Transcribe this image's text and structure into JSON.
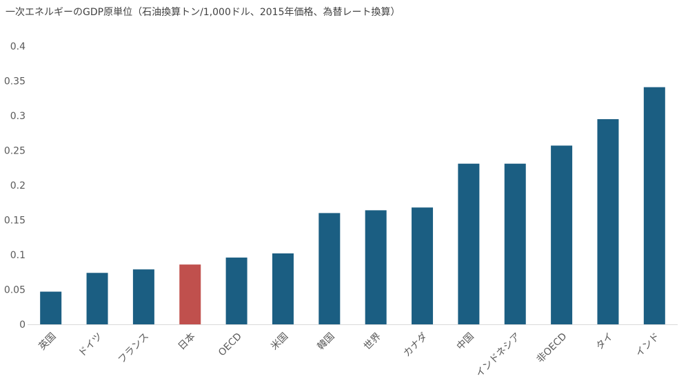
{
  "chart_data": {
    "type": "bar",
    "title": "一次エネルギーのGDP原単位（石油換算トン/1,000ドル、2015年価格、為替レート換算）",
    "categories": [
      "英国",
      "ドイツ",
      "フランス",
      "日本",
      "OECD",
      "米国",
      "韓国",
      "世界",
      "カナダ",
      "中国",
      "インドネシア",
      "非OECD",
      "タイ",
      "インド"
    ],
    "values": [
      0.047,
      0.074,
      0.079,
      0.086,
      0.096,
      0.102,
      0.16,
      0.164,
      0.168,
      0.231,
      0.231,
      0.257,
      0.295,
      0.341
    ],
    "ylim": [
      0,
      0.4
    ],
    "yticks": [
      "0",
      "0.05",
      "0.1",
      "0.15",
      "0.2",
      "0.25",
      "0.3",
      "0.35",
      "0.4"
    ],
    "grid": false,
    "colors": {
      "default": "#1b5e82",
      "highlight": "#c0504d",
      "highlight_category": "日本"
    }
  }
}
